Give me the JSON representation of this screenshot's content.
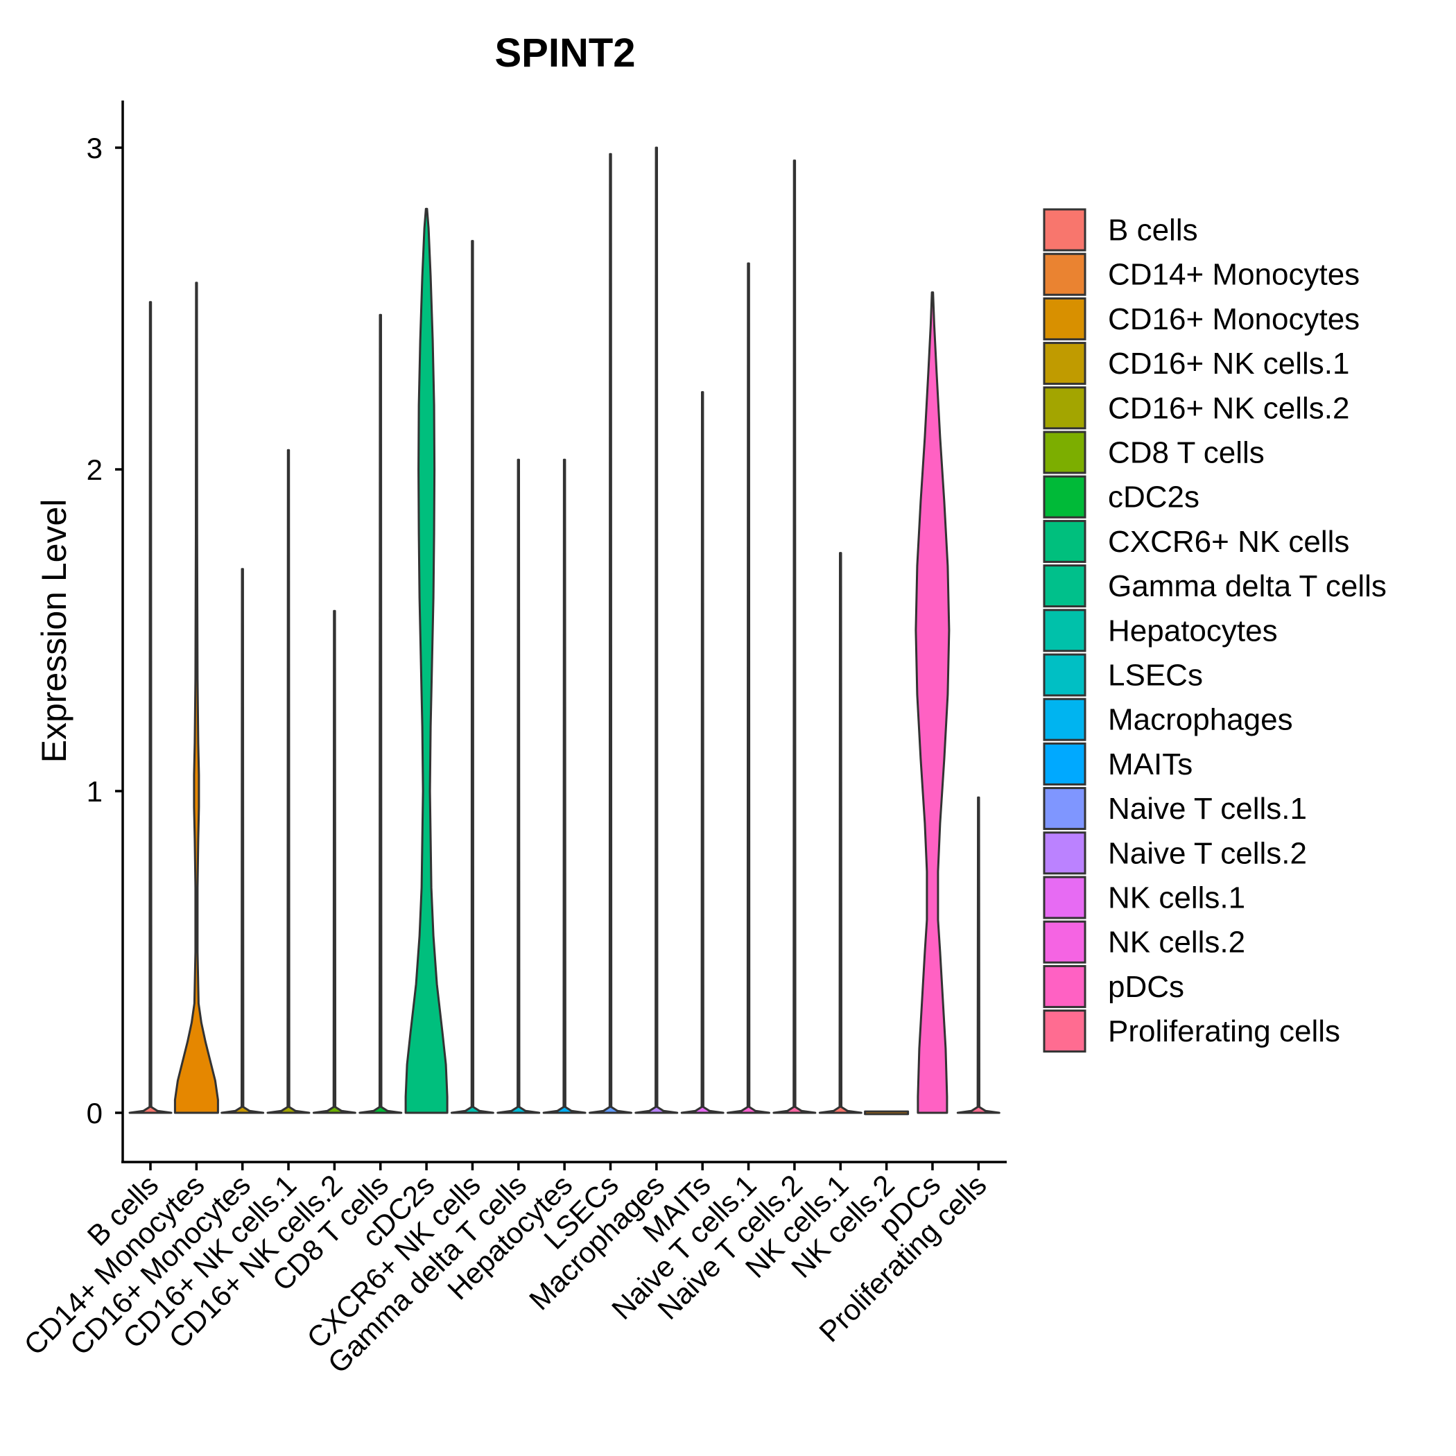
{
  "chart_data": {
    "type": "violin",
    "title": "SPINT2",
    "xlabel": "",
    "ylabel": "Expression Level",
    "ylim": [
      -0.15,
      3.15
    ],
    "yticks": [
      0,
      1,
      2,
      3
    ],
    "legend_position": "right",
    "categories": [
      {
        "label": "B cells",
        "color": "#F8766D",
        "max": 2.52,
        "shape": "spike"
      },
      {
        "label": "CD14+ Monocytes",
        "color": "#E58700",
        "max": 2.58,
        "shape": "monocyte"
      },
      {
        "label": "CD16+ Monocytes",
        "color": "#C99800",
        "max": 1.69,
        "shape": "spike"
      },
      {
        "label": "CD16+ NK cells.1",
        "color": "#A3A500",
        "max": 2.06,
        "shape": "spike"
      },
      {
        "label": "CD16+ NK cells.2",
        "color": "#6BB100",
        "max": 1.56,
        "shape": "spike"
      },
      {
        "label": "CD8 T cells",
        "color": "#00BA38",
        "max": 2.48,
        "shape": "spike"
      },
      {
        "label": "cDC2s",
        "color": "#00BF7D",
        "max": 2.81,
        "shape": "cdc2"
      },
      {
        "label": "CXCR6+ NK cells",
        "color": "#00C0AF",
        "max": 2.71,
        "shape": "spike"
      },
      {
        "label": "Gamma delta T cells",
        "color": "#00BCD8",
        "max": 2.03,
        "shape": "spike"
      },
      {
        "label": "Hepatocytes",
        "color": "#00B0F6",
        "max": 2.03,
        "shape": "spike"
      },
      {
        "label": "LSECs",
        "color": "#619CFF",
        "max": 2.98,
        "shape": "spike"
      },
      {
        "label": "Macrophages",
        "color": "#B983FF",
        "max": 3.0,
        "shape": "spike"
      },
      {
        "label": "MAITs",
        "color": "#E76BF3",
        "max": 2.24,
        "shape": "spike"
      },
      {
        "label": "Naive T cells.1",
        "color": "#FD61D1",
        "max": 2.64,
        "shape": "spike"
      },
      {
        "label": "Naive T cells.2",
        "color": "#FF67A4",
        "max": 2.96,
        "shape": "spike"
      },
      {
        "label": "NK cells.1",
        "color": "#F8766D",
        "max": 1.74,
        "shape": "spike"
      },
      {
        "label": "NK cells.2",
        "color": "#E58700",
        "max": 0.0,
        "shape": "flat"
      },
      {
        "label": "pDCs",
        "color": "#FF61C3",
        "max": 2.55,
        "shape": "pdc"
      },
      {
        "label": "Proliferating cells",
        "color": "#FF6C91",
        "max": 0.98,
        "shape": "spike"
      }
    ],
    "legend": [
      {
        "label": "B cells",
        "color": "#F8766D"
      },
      {
        "label": "CD14+ Monocytes",
        "color": "#EA8331"
      },
      {
        "label": "CD16+ Monocytes",
        "color": "#D89000"
      },
      {
        "label": "CD16+ NK cells.1",
        "color": "#C09B00"
      },
      {
        "label": "CD16+ NK cells.2",
        "color": "#A3A500"
      },
      {
        "label": "CD8 T cells",
        "color": "#7CAE00"
      },
      {
        "label": "cDC2s",
        "color": "#00BA38"
      },
      {
        "label": "CXCR6+ NK cells",
        "color": "#00BF7D"
      },
      {
        "label": "Gamma delta T cells",
        "color": "#00C08B"
      },
      {
        "label": "Hepatocytes",
        "color": "#00C1AA"
      },
      {
        "label": "LSECs",
        "color": "#00BFC4"
      },
      {
        "label": "Macrophages",
        "color": "#00B4F0"
      },
      {
        "label": "MAITs",
        "color": "#00A9FF"
      },
      {
        "label": "Naive T cells.1",
        "color": "#7F96FF"
      },
      {
        "label": "Naive T cells.2",
        "color": "#BB82FF"
      },
      {
        "label": "NK cells.1",
        "color": "#E76BF3"
      },
      {
        "label": "NK cells.2",
        "color": "#F564E3"
      },
      {
        "label": "pDCs",
        "color": "#FF61C3"
      },
      {
        "label": "Proliferating cells",
        "color": "#FF6C91"
      }
    ]
  }
}
